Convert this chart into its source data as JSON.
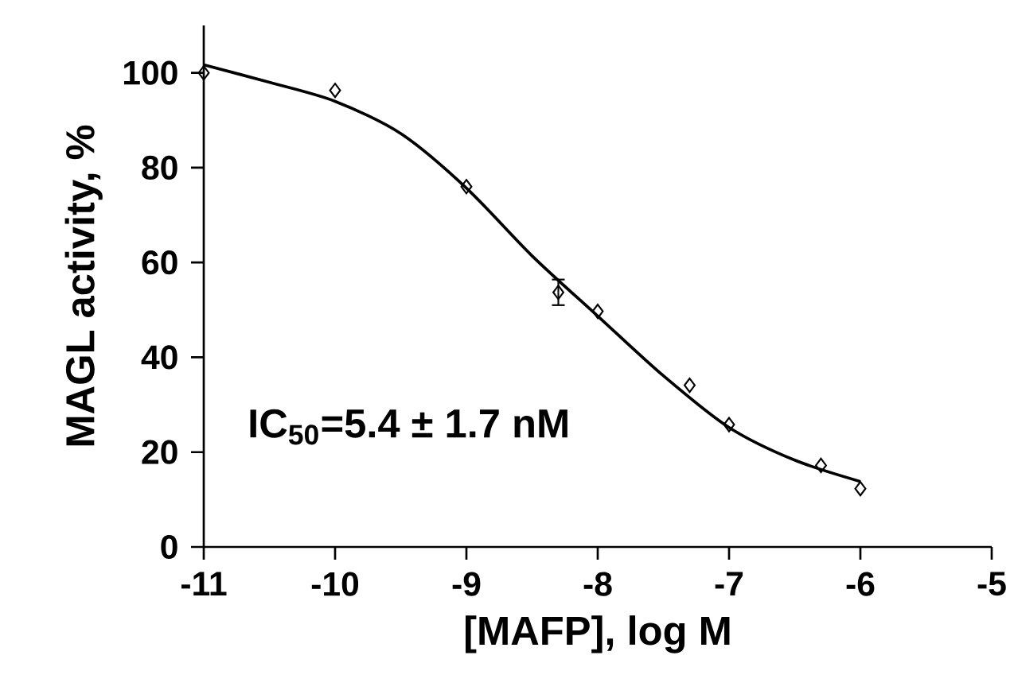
{
  "chart_data": {
    "type": "scatter",
    "xlabel": "[MAFP], log M",
    "ylabel": "MAGL activity, %",
    "xlim": [
      -11,
      -5
    ],
    "ylim": [
      0,
      110
    ],
    "xticks": [
      -11,
      -10,
      -9,
      -8,
      -7,
      -6,
      -5
    ],
    "yticks": [
      0,
      20,
      40,
      60,
      80,
      100
    ],
    "marker": "diamond",
    "grid": false,
    "annotations": [
      "IC$_{50}$=5.4 ± 1.7 nM"
    ],
    "series": [
      {
        "color": "#000000",
        "x": [
          -11,
          -10,
          -9,
          -8.3,
          -8,
          -7.3,
          -7,
          -6.3,
          -6
        ],
        "values": [
          100,
          96.3,
          76.0,
          53.7,
          49.7,
          34.1,
          25.8,
          17.2,
          12.3
        ],
        "errors": [
          null,
          null,
          null,
          2.7,
          null,
          null,
          null,
          null,
          null
        ]
      },
      {
        "type": "line",
        "color": "#000000",
        "marker": "none",
        "line_style": "solid",
        "x": [
          -11,
          -10.5,
          -10,
          -9.5,
          -9,
          -8.5,
          -8,
          -7.5,
          -7,
          -6.5,
          -6
        ],
        "values": [
          101.7,
          98,
          94.0,
          87.2,
          75.7,
          61.4,
          48.7,
          36.1,
          25.2,
          18.3,
          13.8
        ]
      }
    ]
  }
}
